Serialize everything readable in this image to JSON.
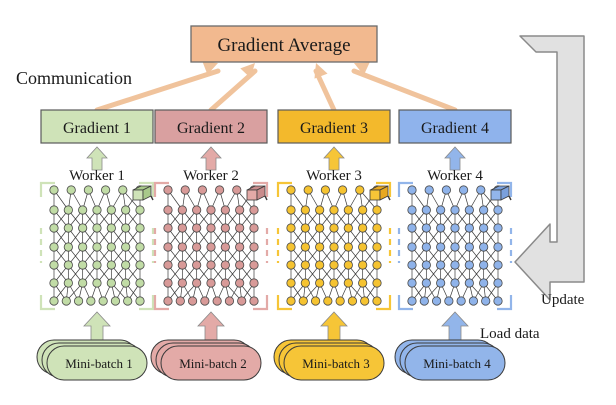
{
  "top": {
    "label": "Gradient Average",
    "fill": "#f2b98f",
    "stroke": "#6b6b6b"
  },
  "labels": {
    "communication": "Communication",
    "update": "Update",
    "load_data": "Load data"
  },
  "colors": {
    "comm_arrow": "#f0c39c",
    "update_arrow_fill": "#e1e1e1",
    "update_arrow_stroke": "#8a8a8a",
    "edge": "#3a3a3a"
  },
  "workers": [
    {
      "gradient_label": "Gradient 1",
      "worker_label": "Worker 1",
      "batch_label": "Mini-batch 1",
      "grad_fill": "#cfe3b8",
      "light": "#cfe3b8",
      "node": "#c1dca6",
      "accent": "#a8c98a"
    },
    {
      "gradient_label": "Gradient 2",
      "worker_label": "Worker 2",
      "batch_label": "Mini-batch 2",
      "grad_fill": "#d9a0a0",
      "light": "#e3aaa7",
      "node": "#d89a98",
      "accent": "#c98c8c"
    },
    {
      "gradient_label": "Gradient 3",
      "worker_label": "Worker 3",
      "batch_label": "Mini-batch 3",
      "grad_fill": "#f3b92c",
      "light": "#f6c537",
      "node": "#f5c331",
      "accent": "#e8a820"
    },
    {
      "gradient_label": "Gradient 4",
      "worker_label": "Worker 4",
      "batch_label": "Mini-batch 4",
      "grad_fill": "#8fb3ec",
      "light": "#92b5ea",
      "node": "#8fb3ea",
      "accent": "#7aa0dc"
    }
  ]
}
